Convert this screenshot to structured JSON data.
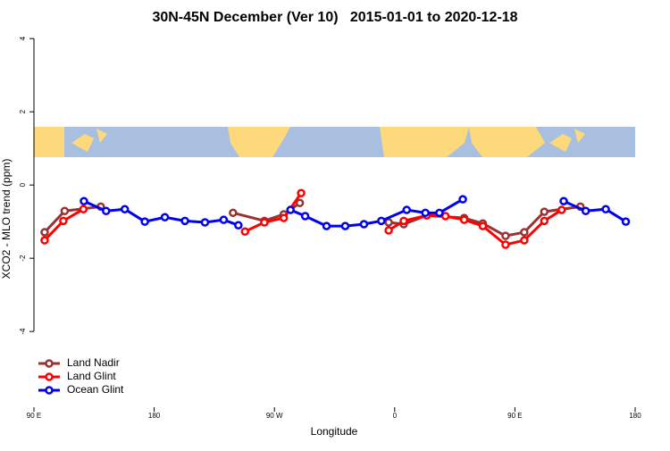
{
  "chart_data": {
    "type": "line",
    "title": "30N-45N December (Ver 10)   2015-01-01 to 2020-12-18",
    "xlabel": "Longitude",
    "ylabel": "XCO2 - MLO trend (ppm)",
    "xlim": [
      90,
      540
    ],
    "xticks": [
      {
        "value": 90,
        "label": "90 E"
      },
      {
        "value": 180,
        "label": "180"
      },
      {
        "value": 270,
        "label": "90 W"
      },
      {
        "value": 360,
        "label": "0"
      },
      {
        "value": 450,
        "label": "90 E"
      },
      {
        "value": 540,
        "label": "180"
      }
    ],
    "ylim": [
      -6.07,
      4.2
    ],
    "yticks": [
      4,
      2,
      0,
      -2,
      -4
    ],
    "legend": "lower left",
    "series": [
      {
        "name": "Land Nadir",
        "color": "#993333",
        "x": [
          98,
          113,
          140,
          null,
          239,
          262.5,
          277,
          289,
          null,
          355.5,
          366.8,
          384,
          412,
          426,
          443,
          457,
          472,
          499
        ],
        "values": [
          -1.29,
          -0.71,
          -0.59,
          null,
          -0.76,
          -0.98,
          -0.8,
          -0.49,
          null,
          -1.02,
          -1.07,
          -0.83,
          -0.9,
          -1.05,
          -1.39,
          -1.29,
          -0.73,
          -0.59
        ]
      },
      {
        "name": "Land Glint",
        "color": "#ff0000",
        "x": [
          98,
          112,
          127,
          null,
          248,
          262.5,
          277,
          290,
          null,
          355.5,
          366.8,
          384,
          398,
          412,
          426,
          443,
          457,
          472,
          485
        ],
        "values": [
          -1.51,
          -0.98,
          -0.66,
          null,
          -1.27,
          -1.02,
          -0.9,
          -0.22,
          null,
          -1.24,
          -0.98,
          -0.83,
          -0.85,
          -0.95,
          -1.12,
          -1.63,
          -1.51,
          -0.98,
          -0.68
        ]
      },
      {
        "name": "Ocean Glint",
        "color": "#0000ee",
        "x": [
          127.4,
          144,
          158,
          173,
          188,
          203,
          218,
          232,
          243,
          null,
          282,
          293,
          309,
          323,
          337,
          350,
          369,
          383,
          393.5,
          411,
          null,
          486.5,
          503,
          518,
          533
        ],
        "values": [
          -0.44,
          -0.71,
          -0.66,
          -1.0,
          -0.88,
          -0.98,
          -1.02,
          -0.95,
          -1.1,
          null,
          -0.68,
          -0.85,
          -1.12,
          -1.12,
          -1.07,
          -0.98,
          -0.68,
          -0.76,
          -0.76,
          -0.39,
          null,
          -0.44,
          -0.71,
          -0.66,
          -1.0
        ]
      }
    ]
  }
}
